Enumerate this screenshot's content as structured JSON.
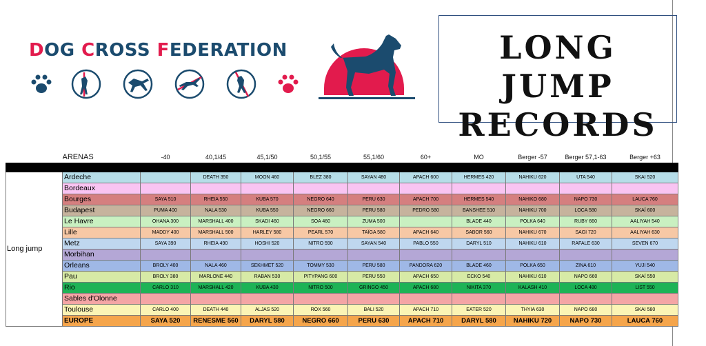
{
  "header": {
    "logo_part1": "D",
    "logo_part2": "OG ",
    "logo_part3": "C",
    "logo_part4": "ROSS ",
    "logo_part5": "F",
    "logo_part6": "EDERATION",
    "title_line1": "LONG JUMP",
    "title_line2": "RECORDS"
  },
  "table": {
    "arenas_label": "ARENAS",
    "category": "Long jump",
    "columns": [
      "-40",
      "40,1/45",
      "45,1/50",
      "50,1/55",
      "55,1/60",
      "60+",
      "MO",
      "Berger -57",
      "Berger 57,1-63",
      "Berger +63"
    ],
    "rows": [
      {
        "city": "Ardeche",
        "color": "#b6dde8",
        "cells": [
          "",
          "DEATH 350",
          "MOON 460",
          "BLEZ 380",
          "SAYAN 480",
          "APACH 600",
          "HERMES 420",
          "NAHIKU 620",
          "UTA 540",
          "SKAI 520"
        ]
      },
      {
        "city": "Bordeaux",
        "color": "#f9c4f2",
        "cells": [
          "",
          "",
          "",
          "",
          "",
          "",
          "",
          "",
          "",
          ""
        ]
      },
      {
        "city": "Bourges",
        "color": "#d57f7f",
        "cells": [
          "SAYA 510",
          "RHEIA 550",
          "KUBA 570",
          "NEGRO 640",
          "PERU 630",
          "APACH 700",
          "HERMES 540",
          "NAHIKO 680",
          "NAPO 730",
          "LAUCA 760"
        ]
      },
      {
        "city": "Budapest",
        "color": "#c6b39d",
        "cells": [
          "PUMA 400",
          "NALA 530",
          "KUBA 550",
          "NEGRO 660",
          "PERU 580",
          "PEDRO 580",
          "BANSHEE 510",
          "NAHIKU 700",
          "LOCA 580",
          "SKAÏ 600"
        ]
      },
      {
        "city": "Le Havre",
        "color": "#c9f0c1",
        "cells": [
          "OHANA 300",
          "MARSHALL 400",
          "SKADI 460",
          "SOA 460",
          "ZUMA 500",
          "",
          "BLADE 440",
          "POLKA 640",
          "RUBY 660",
          "AALIYAH 540"
        ]
      },
      {
        "city": "Lille",
        "color": "#f7c8a5",
        "cells": [
          "MADDY 400",
          "MARSHALL 500",
          "HARLEY 580",
          "PEARL 570",
          "TAÏGA 580",
          "APACH 640",
          "SABOR 560",
          "NAHIKU 670",
          "SAGI 720",
          "AALIYAH 630"
        ]
      },
      {
        "city": "Metz",
        "color": "#bfd7ef",
        "cells": [
          "SAYA 390",
          "RHEIA 490",
          "HOSHI 520",
          "NITRO 590",
          "SAYAN 540",
          "PABLO 550",
          "DARYL 510",
          "NAHIKU 610",
          "RAFALE 630",
          "SEVEN 670"
        ]
      },
      {
        "city": "Morbihan",
        "color": "#b4a7d6",
        "cells": [
          "",
          "",
          "",
          "",
          "",
          "",
          "",
          "",
          "",
          ""
        ]
      },
      {
        "city": "Orleans",
        "color": "#9fb8e6",
        "cells": [
          "BROLY 400",
          "NALA 460",
          "SEKHMET 520",
          "TOMMY 530",
          "PERU 580",
          "PANDORA 620",
          "BLADE 460",
          "POLKA 650",
          "ZINA 610",
          "YUJI 540"
        ]
      },
      {
        "city": "Pau",
        "color": "#d7eaa6",
        "cells": [
          "BROLY 380",
          "MARLONE 440",
          "RABAN 530",
          "PITYPANG 600",
          "PERU 550",
          "APACH 650",
          "ECKO 540",
          "NAHIKU 610",
          "NAPO 660",
          "SKAÏ 550"
        ]
      },
      {
        "city": "Rio",
        "color": "#1db356",
        "cells": [
          "CARLO 310",
          "MARSHALL 420",
          "KUBA 430",
          "NITRO 500",
          "GRINGO 450",
          "APACH 680",
          "NIKITA 370",
          "KALASH 410",
          "LOCA 480",
          "LIST 550"
        ]
      },
      {
        "city": "Sables d'Olonne",
        "color": "#f4a5a5",
        "cells": [
          "",
          "",
          "",
          "",
          "",
          "",
          "",
          "",
          "",
          ""
        ]
      },
      {
        "city": "Toulouse",
        "color": "#fbf4b5",
        "cells": [
          "CARLO 400",
          "DEATH 440",
          "ALJAS 520",
          "ROX 560",
          "BALI 520",
          "APACH 710",
          "EATER 520",
          "THYIA 630",
          "NAPO 680",
          "SKAI 580"
        ]
      }
    ],
    "europe": {
      "city": "EUROPE",
      "color": "#f5a54b",
      "cells": [
        "SAYA 520",
        "RENESME 560",
        "DARYL 580",
        "NEGRO 660",
        "PERU 630",
        "APACH 710",
        "DARYL 580",
        "NAHIKU 720",
        "NAPO 730",
        "LAUCA 760"
      ]
    }
  },
  "icons": [
    "paw-icon",
    "hurdle-jump-icon",
    "agility-tunnel-icon",
    "long-jump-icon",
    "high-jump-icon",
    "paw-icon"
  ],
  "colors": {
    "navy": "#1b4b6e",
    "red": "#e21b4d"
  }
}
